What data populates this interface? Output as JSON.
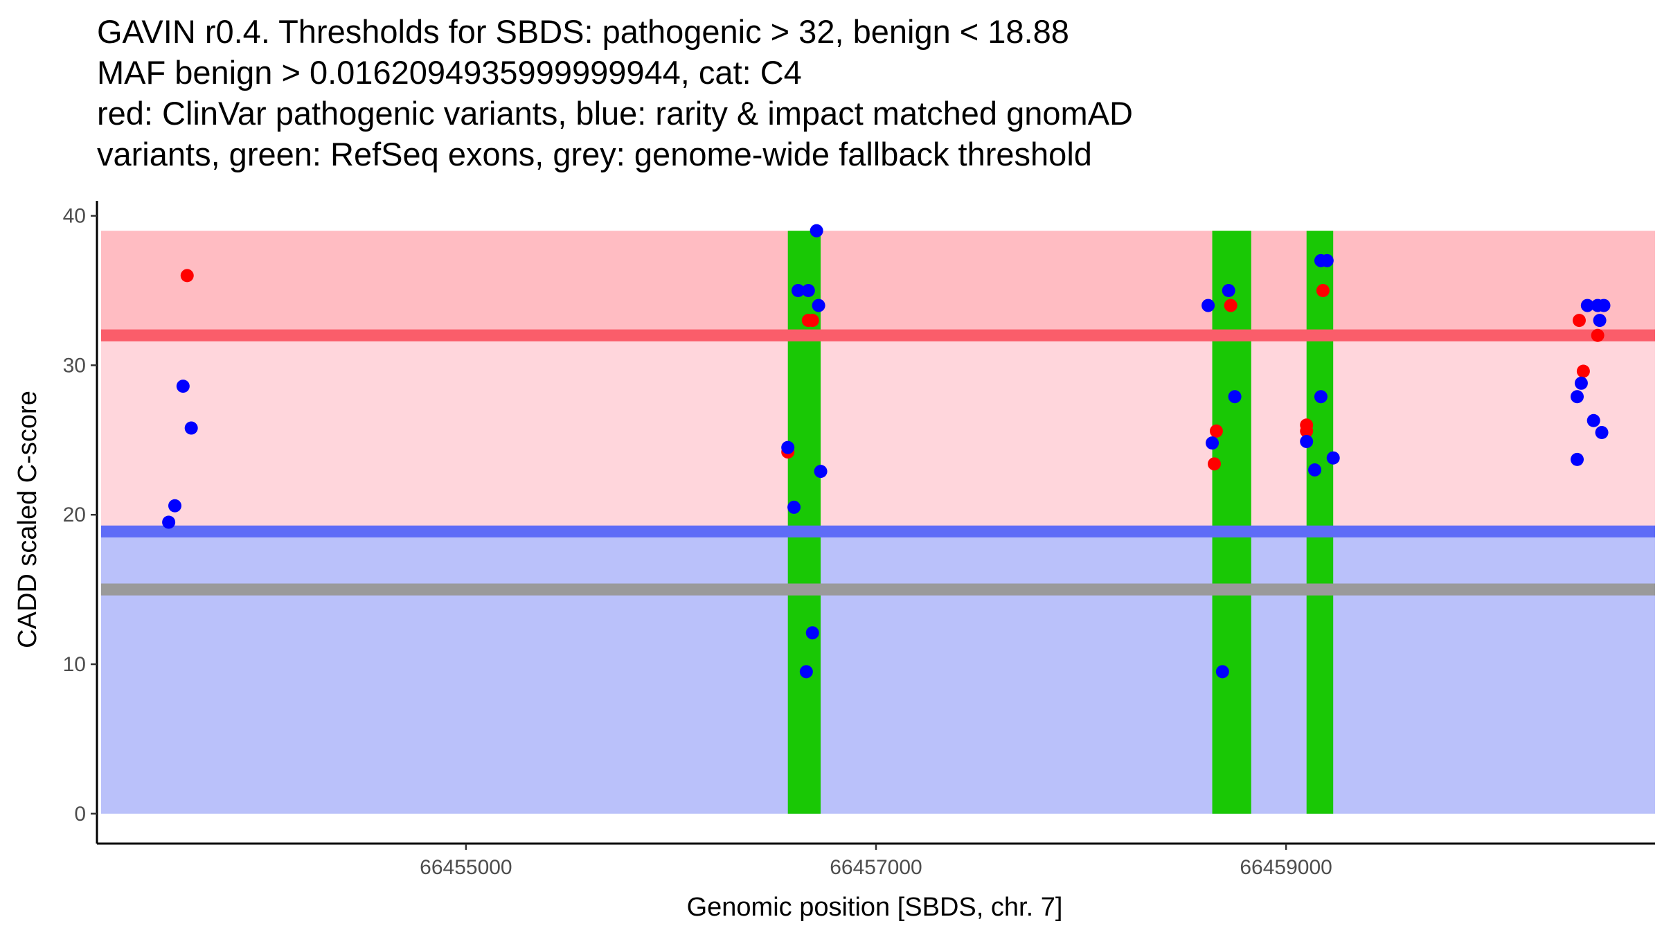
{
  "chart_data": {
    "type": "scatter",
    "title_lines": [
      "GAVIN r0.4. Thresholds for SBDS: pathogenic > 32, benign < 18.88",
      "MAF benign > 0.0162094935999999944, cat: C4",
      "red: ClinVar pathogenic variants, blue: rarity & impact matched gnomAD",
      "variants, green: RefSeq exons, grey: genome-wide fallback threshold"
    ],
    "xlabel": "Genomic position [SBDS, chr. 7]",
    "ylabel": "CADD scaled C-score",
    "xlim": [
      66453200,
      66460800
    ],
    "ylim": [
      -2,
      41
    ],
    "x_ticks": [
      66455000,
      66457000,
      66459000
    ],
    "x_tick_labels": [
      "66455000",
      "66457000",
      "66459000"
    ],
    "y_ticks": [
      0,
      10,
      20,
      30,
      40
    ],
    "y_tick_labels": [
      "0",
      "10",
      "20",
      "30",
      "40"
    ],
    "data_range": {
      "x": [
        66453220,
        66460800
      ],
      "y": [
        0,
        39
      ]
    },
    "thresholds": {
      "pathogenic": 32,
      "benign": 18.88,
      "fallback": 15
    },
    "colors": {
      "pathogenic_zone": "#ffbcc2",
      "intermediate_zone": "#ffd6dc",
      "benign_zone": "#bac1fa",
      "pathogenic_line": "#fa5d6a",
      "benign_line": "#5e6cf7",
      "fallback_line": "#9a9a9a",
      "exon": "#19c805",
      "pathogenic_point": "#ff0000",
      "gnomad_point": "#0000ff"
    },
    "exons": [
      {
        "start": 66456570,
        "end": 66456730
      },
      {
        "start": 66458640,
        "end": 66458830
      },
      {
        "start": 66459100,
        "end": 66459230
      }
    ],
    "series": [
      {
        "name": "ClinVar pathogenic variants",
        "color": "#ff0000",
        "points": [
          {
            "x": 66453640,
            "y": 36
          },
          {
            "x": 66456570,
            "y": 24.2
          },
          {
            "x": 66456670,
            "y": 33
          },
          {
            "x": 66456690,
            "y": 33
          },
          {
            "x": 66458650,
            "y": 23.4
          },
          {
            "x": 66458660,
            "y": 25.6
          },
          {
            "x": 66458730,
            "y": 34
          },
          {
            "x": 66459100,
            "y": 25.6
          },
          {
            "x": 66459100,
            "y": 26
          },
          {
            "x": 66459180,
            "y": 35
          },
          {
            "x": 66460430,
            "y": 33
          },
          {
            "x": 66460450,
            "y": 29.6
          },
          {
            "x": 66460520,
            "y": 32
          }
        ]
      },
      {
        "name": "rarity & impact matched gnomAD variants",
        "color": "#0000ff",
        "points": [
          {
            "x": 66453550,
            "y": 19.5
          },
          {
            "x": 66453580,
            "y": 20.6
          },
          {
            "x": 66453620,
            "y": 28.6
          },
          {
            "x": 66453660,
            "y": 25.8
          },
          {
            "x": 66456570,
            "y": 24.5
          },
          {
            "x": 66456600,
            "y": 20.5
          },
          {
            "x": 66456620,
            "y": 35
          },
          {
            "x": 66456660,
            "y": 9.5
          },
          {
            "x": 66456670,
            "y": 35
          },
          {
            "x": 66456690,
            "y": 12.1
          },
          {
            "x": 66456710,
            "y": 39
          },
          {
            "x": 66456720,
            "y": 34
          },
          {
            "x": 66456730,
            "y": 22.9
          },
          {
            "x": 66458620,
            "y": 34
          },
          {
            "x": 66458640,
            "y": 24.8
          },
          {
            "x": 66458690,
            "y": 9.5
          },
          {
            "x": 66458720,
            "y": 35
          },
          {
            "x": 66458750,
            "y": 27.9
          },
          {
            "x": 66459100,
            "y": 24.9
          },
          {
            "x": 66459140,
            "y": 23
          },
          {
            "x": 66459170,
            "y": 27.9
          },
          {
            "x": 66459170,
            "y": 37
          },
          {
            "x": 66459200,
            "y": 37
          },
          {
            "x": 66459230,
            "y": 23.8
          },
          {
            "x": 66460420,
            "y": 23.7
          },
          {
            "x": 66460420,
            "y": 27.9
          },
          {
            "x": 66460440,
            "y": 28.8
          },
          {
            "x": 66460470,
            "y": 34
          },
          {
            "x": 66460500,
            "y": 26.3
          },
          {
            "x": 66460520,
            "y": 34
          },
          {
            "x": 66460530,
            "y": 33
          },
          {
            "x": 66460540,
            "y": 25.5
          },
          {
            "x": 66460550,
            "y": 34
          }
        ]
      }
    ]
  }
}
